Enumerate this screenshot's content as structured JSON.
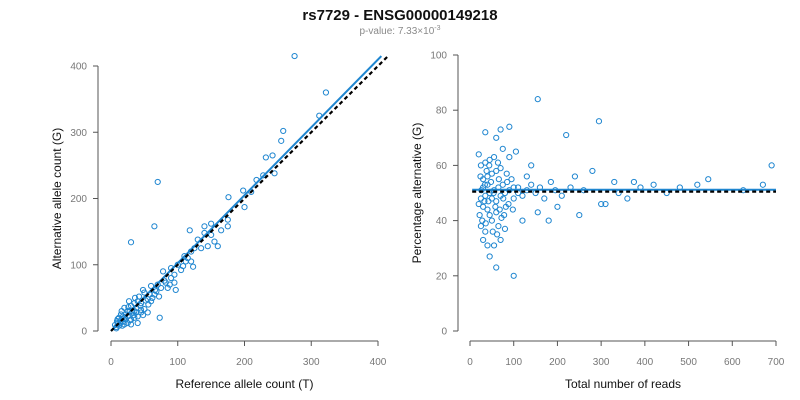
{
  "header": {
    "title": "rs7729 - ENSG00000149218",
    "pvalue_prefix": "p-value: 7.33×10",
    "pvalue_exp": "-3"
  },
  "chart_data": [
    {
      "type": "scatter",
      "xlabel": "Reference allele count (T)",
      "ylabel": "Alternative allele count (G)",
      "xlim": [
        0,
        400
      ],
      "ylim": [
        0,
        400
      ],
      "x_ticks": [
        0,
        100,
        200,
        300,
        400
      ],
      "y_ticks": [
        0,
        100,
        200,
        300,
        400
      ],
      "fit_line": {
        "x": [
          0,
          405
        ],
        "y": [
          0,
          415
        ]
      },
      "reference_line": {
        "x": [
          0,
          415
        ],
        "y": [
          0,
          415
        ]
      },
      "points": [
        [
          275,
          415
        ],
        [
          322,
          360
        ],
        [
          312,
          325
        ],
        [
          258,
          302
        ],
        [
          255,
          287
        ],
        [
          232,
          262
        ],
        [
          242,
          265
        ],
        [
          228,
          235
        ],
        [
          218,
          228
        ],
        [
          198,
          212
        ],
        [
          176,
          202
        ],
        [
          150,
          162
        ],
        [
          140,
          148
        ],
        [
          130,
          138
        ],
        [
          120,
          120
        ],
        [
          110,
          113
        ],
        [
          100,
          100
        ],
        [
          90,
          95
        ],
        [
          78,
          90
        ],
        [
          82,
          73
        ],
        [
          70,
          70
        ],
        [
          68,
          60
        ],
        [
          60,
          68
        ],
        [
          62,
          50
        ],
        [
          50,
          58
        ],
        [
          45,
          42
        ],
        [
          40,
          45
        ],
        [
          35,
          30
        ],
        [
          28,
          30
        ],
        [
          25,
          22
        ],
        [
          20,
          20
        ],
        [
          15,
          16
        ],
        [
          10,
          12
        ],
        [
          8,
          6
        ],
        [
          70,
          225
        ],
        [
          30,
          134
        ],
        [
          65,
          158
        ],
        [
          118,
          152
        ],
        [
          140,
          158
        ],
        [
          155,
          135
        ],
        [
          175,
          168
        ],
        [
          175,
          158
        ],
        [
          150,
          145
        ],
        [
          160,
          128
        ],
        [
          135,
          125
        ],
        [
          120,
          105
        ],
        [
          123,
          97
        ],
        [
          112,
          105
        ],
        [
          90,
          80
        ],
        [
          85,
          65
        ],
        [
          95,
          73
        ],
        [
          105,
          92
        ],
        [
          97,
          62
        ],
        [
          72,
          52
        ],
        [
          56,
          40
        ],
        [
          50,
          33
        ],
        [
          45,
          28
        ],
        [
          40,
          22
        ],
        [
          35,
          20
        ],
        [
          30,
          17
        ],
        [
          25,
          12
        ],
        [
          20,
          10
        ],
        [
          17,
          8
        ],
        [
          12,
          8
        ],
        [
          8,
          4
        ],
        [
          73,
          20
        ],
        [
          55,
          28
        ],
        [
          48,
          24
        ],
        [
          35,
          42
        ],
        [
          30,
          38
        ],
        [
          25,
          30
        ],
        [
          22,
          25
        ],
        [
          30,
          10
        ],
        [
          20,
          35
        ],
        [
          15,
          25
        ],
        [
          12,
          20
        ],
        [
          18,
          14
        ],
        [
          10,
          18
        ],
        [
          55,
          48
        ],
        [
          42,
          52
        ],
        [
          60,
          45
        ],
        [
          65,
          55
        ],
        [
          75,
          65
        ],
        [
          88,
          70
        ],
        [
          95,
          85
        ],
        [
          108,
          98
        ],
        [
          115,
          110
        ],
        [
          125,
          125
        ],
        [
          145,
          128
        ],
        [
          165,
          152
        ],
        [
          200,
          187
        ],
        [
          210,
          210
        ],
        [
          245,
          238
        ],
        [
          32,
          28
        ],
        [
          38,
          35
        ],
        [
          44,
          38
        ],
        [
          52,
          46
        ],
        [
          58,
          55
        ],
        [
          66,
          62
        ],
        [
          80,
          76
        ],
        [
          27,
          45
        ],
        [
          36,
          50
        ],
        [
          48,
          62
        ],
        [
          16,
          30
        ],
        [
          40,
          12
        ],
        [
          28,
          16
        ],
        [
          22,
          18
        ],
        [
          38,
          28
        ],
        [
          45,
          32
        ],
        [
          34,
          24
        ],
        [
          26,
          36
        ],
        [
          18,
          22
        ],
        [
          14,
          12
        ],
        [
          9,
          15
        ],
        [
          6,
          9
        ]
      ]
    },
    {
      "type": "scatter",
      "xlabel": "Total number of reads",
      "ylabel": "Percentage alternative (G)",
      "xlim": [
        0,
        700
      ],
      "ylim": [
        0,
        100
      ],
      "x_ticks": [
        0,
        100,
        200,
        300,
        400,
        500,
        600,
        700
      ],
      "y_ticks": [
        0,
        20,
        40,
        60,
        80,
        100
      ],
      "fit_line": {
        "x": [
          5,
          700
        ],
        "y": [
          51.2,
          51.2
        ]
      },
      "reference_line": {
        "x": [
          5,
          700
        ],
        "y": [
          50.5,
          50.5
        ]
      },
      "points": [
        [
          155,
          84
        ],
        [
          295,
          76
        ],
        [
          90,
          74
        ],
        [
          70,
          73
        ],
        [
          35,
          72
        ],
        [
          220,
          71
        ],
        [
          60,
          70
        ],
        [
          690,
          60
        ],
        [
          330,
          54
        ],
        [
          375,
          54
        ],
        [
          420,
          53
        ],
        [
          520,
          53
        ],
        [
          545,
          55
        ],
        [
          625,
          51
        ],
        [
          670,
          53
        ],
        [
          450,
          50
        ],
        [
          480,
          52
        ],
        [
          280,
          58
        ],
        [
          240,
          56
        ],
        [
          300,
          46
        ],
        [
          310,
          46
        ],
        [
          250,
          42
        ],
        [
          200,
          45
        ],
        [
          180,
          40
        ],
        [
          155,
          43
        ],
        [
          120,
          40
        ],
        [
          100,
          48
        ],
        [
          110,
          52
        ],
        [
          130,
          56
        ],
        [
          140,
          60
        ],
        [
          90,
          63
        ],
        [
          105,
          65
        ],
        [
          75,
          66
        ],
        [
          100,
          20
        ],
        [
          60,
          23
        ],
        [
          45,
          27
        ],
        [
          40,
          31
        ],
        [
          55,
          31
        ],
        [
          70,
          33
        ],
        [
          30,
          33
        ],
        [
          35,
          36
        ],
        [
          25,
          38
        ],
        [
          80,
          37
        ],
        [
          65,
          38
        ],
        [
          50,
          40
        ],
        [
          45,
          42
        ],
        [
          60,
          43
        ],
        [
          40,
          44
        ],
        [
          30,
          45
        ],
        [
          20,
          46
        ],
        [
          25,
          48
        ],
        [
          35,
          49
        ],
        [
          45,
          50
        ],
        [
          55,
          51
        ],
        [
          65,
          52
        ],
        [
          75,
          53
        ],
        [
          85,
          54
        ],
        [
          95,
          55
        ],
        [
          30,
          55
        ],
        [
          40,
          56
        ],
        [
          50,
          57
        ],
        [
          60,
          58
        ],
        [
          70,
          59
        ],
        [
          25,
          60
        ],
        [
          35,
          61
        ],
        [
          45,
          62
        ],
        [
          55,
          63
        ],
        [
          20,
          64
        ],
        [
          30,
          52
        ],
        [
          40,
          53
        ],
        [
          50,
          48
        ],
        [
          60,
          47
        ],
        [
          70,
          49
        ],
        [
          80,
          50
        ],
        [
          90,
          51
        ],
        [
          100,
          52
        ],
        [
          110,
          50
        ],
        [
          120,
          49
        ],
        [
          130,
          51
        ],
        [
          140,
          53
        ],
        [
          150,
          50
        ],
        [
          160,
          52
        ],
        [
          170,
          48
        ],
        [
          185,
          54
        ],
        [
          195,
          51
        ],
        [
          210,
          49
        ],
        [
          230,
          52
        ],
        [
          260,
          51
        ],
        [
          340,
          50
        ],
        [
          360,
          48
        ],
        [
          390,
          52
        ],
        [
          22,
          42
        ],
        [
          28,
          40
        ],
        [
          33,
          47
        ],
        [
          38,
          58
        ],
        [
          48,
          54
        ],
        [
          58,
          45
        ],
        [
          68,
          44
        ],
        [
          78,
          42
        ],
        [
          88,
          46
        ],
        [
          98,
          44
        ],
        [
          24,
          56
        ],
        [
          44,
          60
        ],
        [
          64,
          61
        ],
        [
          84,
          57
        ],
        [
          36,
          39
        ],
        [
          52,
          36
        ],
        [
          62,
          35
        ],
        [
          72,
          41
        ],
        [
          82,
          45
        ],
        [
          26,
          51
        ],
        [
          34,
          53
        ],
        [
          42,
          47
        ],
        [
          54,
          50
        ],
        [
          66,
          55
        ],
        [
          76,
          48
        ]
      ]
    }
  ]
}
